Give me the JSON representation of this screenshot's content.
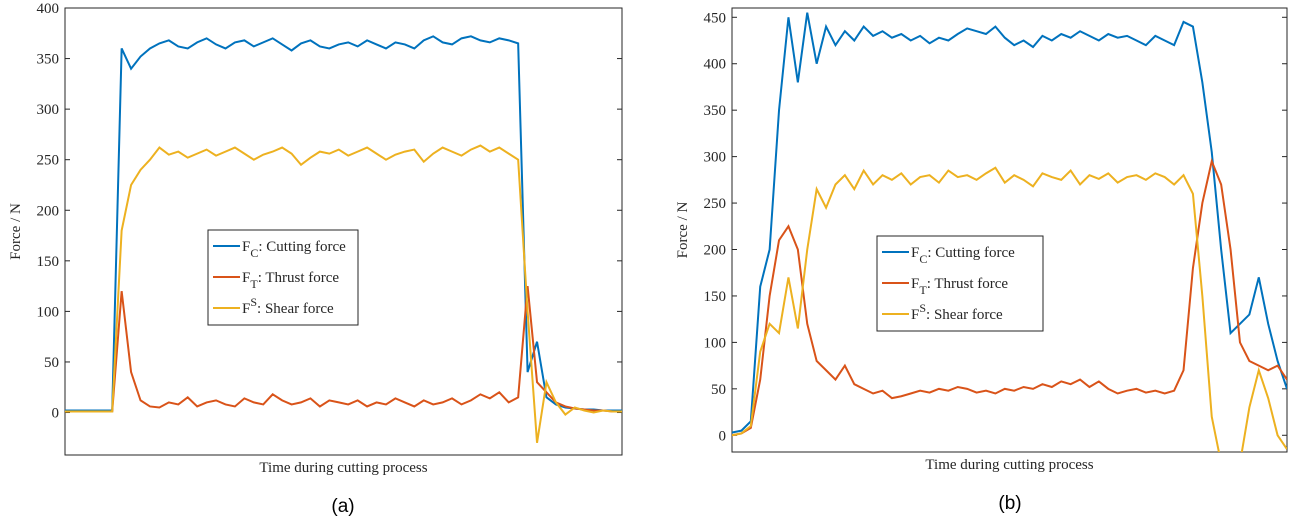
{
  "chart_data": [
    {
      "type": "line",
      "xlabel": "Time during cutting process",
      "ylabel": "Force / N",
      "caption": "(a)",
      "ylim": [
        -42,
        400
      ],
      "yticks": [
        0,
        50,
        100,
        150,
        200,
        250,
        300,
        350,
        400
      ],
      "legend": "center",
      "series": [
        {
          "name": "FC: Cutting force",
          "name_script": "sub",
          "color": "#0072bd",
          "values": [
            2,
            2,
            2,
            2,
            2,
            2,
            360,
            340,
            352,
            360,
            365,
            368,
            362,
            360,
            366,
            370,
            364,
            360,
            366,
            368,
            362,
            366,
            370,
            364,
            358,
            365,
            368,
            362,
            360,
            364,
            366,
            362,
            368,
            364,
            360,
            366,
            364,
            360,
            368,
            372,
            366,
            364,
            370,
            372,
            368,
            366,
            370,
            368,
            365,
            40,
            70,
            15,
            8,
            5,
            4,
            3,
            3,
            2,
            2,
            2
          ]
        },
        {
          "name": "FT: Thrust force",
          "name_script": "sub",
          "color": "#d95319",
          "values": [
            1,
            1,
            1,
            1,
            1,
            1,
            120,
            40,
            12,
            6,
            5,
            10,
            8,
            15,
            6,
            10,
            12,
            8,
            6,
            14,
            10,
            8,
            18,
            12,
            8,
            10,
            14,
            6,
            12,
            10,
            8,
            12,
            6,
            10,
            8,
            14,
            10,
            6,
            12,
            8,
            10,
            14,
            8,
            12,
            18,
            14,
            20,
            10,
            15,
            125,
            30,
            20,
            10,
            6,
            4,
            3,
            2,
            2,
            1,
            1
          ]
        },
        {
          "name": "FS: Shear force",
          "name_script": "super",
          "color": "#edb120",
          "values": [
            1,
            1,
            1,
            1,
            1,
            1,
            180,
            225,
            240,
            250,
            262,
            255,
            258,
            252,
            256,
            260,
            254,
            258,
            262,
            256,
            250,
            255,
            258,
            262,
            256,
            245,
            252,
            258,
            256,
            260,
            254,
            258,
            262,
            256,
            250,
            255,
            258,
            260,
            248,
            256,
            262,
            258,
            254,
            260,
            264,
            258,
            262,
            256,
            250,
            100,
            -30,
            30,
            10,
            -2,
            5,
            2,
            0,
            2,
            1,
            1
          ]
        }
      ]
    },
    {
      "type": "line",
      "xlabel": "Time during cutting process",
      "ylabel": "Force / N",
      "caption": "(b)",
      "ylim": [
        -18,
        460
      ],
      "yticks": [
        0,
        50,
        100,
        150,
        200,
        250,
        300,
        350,
        400,
        450
      ],
      "legend": "center",
      "series": [
        {
          "name": "FC: Cutting force",
          "name_script": "sub",
          "color": "#0072bd",
          "values": [
            3,
            5,
            15,
            160,
            200,
            350,
            450,
            380,
            455,
            400,
            440,
            420,
            435,
            425,
            440,
            430,
            435,
            428,
            432,
            425,
            430,
            422,
            428,
            425,
            432,
            438,
            435,
            432,
            440,
            428,
            420,
            425,
            418,
            430,
            425,
            432,
            428,
            435,
            430,
            425,
            432,
            428,
            430,
            425,
            420,
            430,
            425,
            420,
            445,
            440,
            380,
            305,
            200,
            110,
            120,
            130,
            170,
            120,
            80,
            50
          ]
        },
        {
          "name": "FT: Thrust force",
          "name_script": "sub",
          "color": "#d95319",
          "values": [
            0,
            2,
            8,
            60,
            150,
            210,
            225,
            200,
            120,
            80,
            70,
            60,
            75,
            55,
            50,
            45,
            48,
            40,
            42,
            45,
            48,
            46,
            50,
            48,
            52,
            50,
            46,
            48,
            45,
            50,
            48,
            52,
            50,
            55,
            52,
            58,
            55,
            60,
            52,
            58,
            50,
            45,
            48,
            50,
            46,
            48,
            45,
            48,
            70,
            180,
            250,
            295,
            270,
            200,
            100,
            80,
            75,
            70,
            75,
            60
          ]
        },
        {
          "name": "FS: Shear force",
          "name_script": "super",
          "color": "#edb120",
          "values": [
            0,
            2,
            10,
            90,
            120,
            110,
            170,
            115,
            200,
            265,
            245,
            270,
            280,
            265,
            285,
            270,
            280,
            275,
            282,
            270,
            278,
            280,
            272,
            285,
            278,
            280,
            275,
            282,
            288,
            272,
            280,
            275,
            268,
            282,
            278,
            275,
            285,
            270,
            280,
            276,
            282,
            272,
            278,
            280,
            275,
            282,
            278,
            270,
            280,
            260,
            150,
            20,
            -30,
            -40,
            -30,
            30,
            70,
            40,
            0,
            -15
          ]
        }
      ]
    }
  ]
}
